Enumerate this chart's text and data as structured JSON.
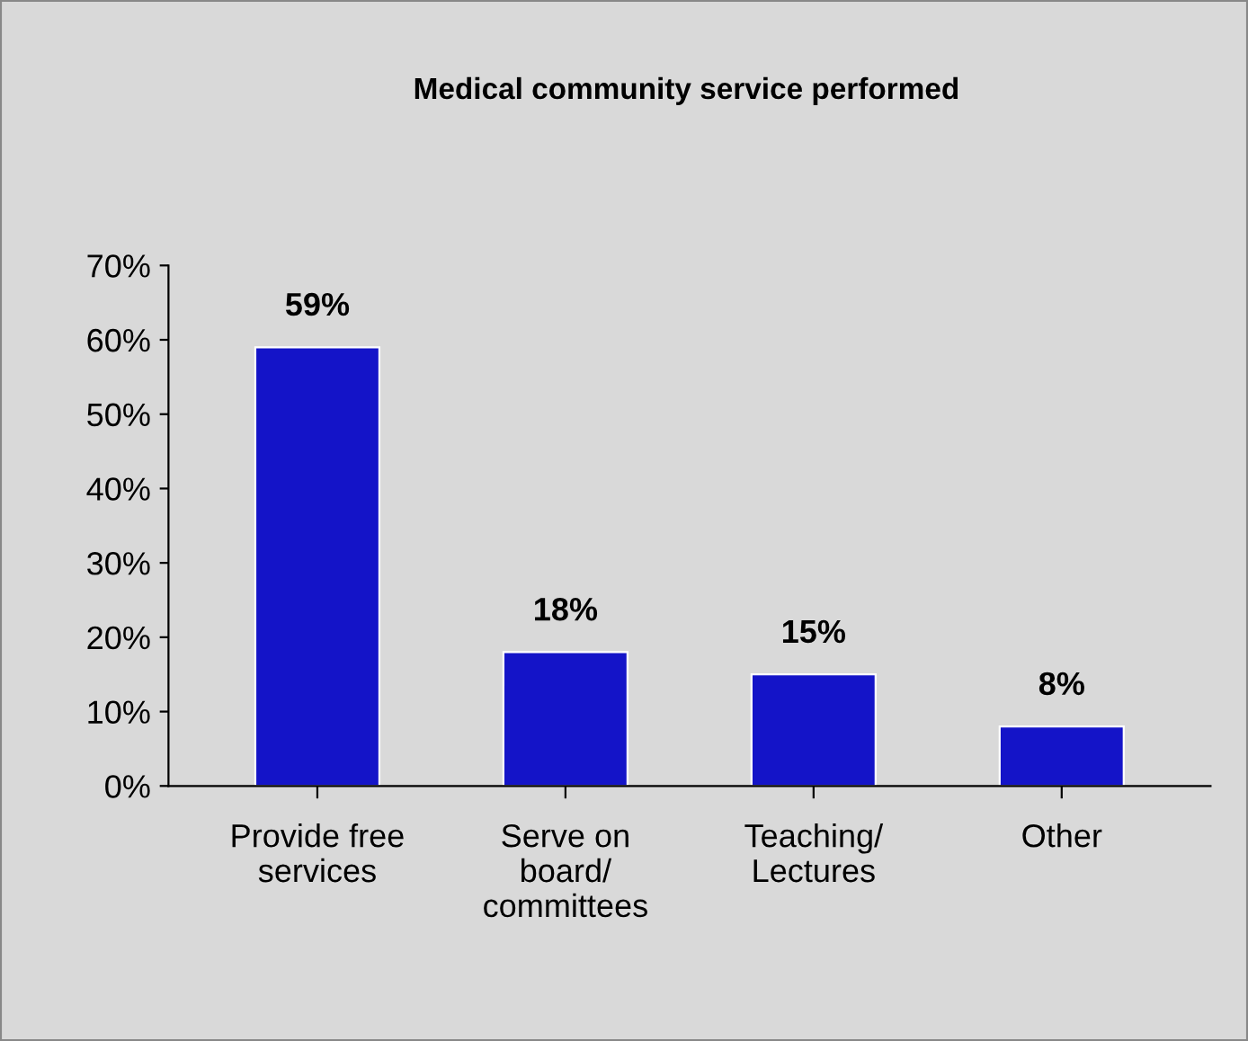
{
  "chart_data": {
    "type": "bar",
    "title": "Medical community service performed",
    "categories": [
      "Provide free\nservices",
      "Serve on\nboard/\ncommittees",
      "Teaching/\nLectures",
      "Other"
    ],
    "values": [
      59,
      18,
      15,
      8
    ],
    "color": "#1414c8",
    "value_labels": [
      "59%",
      "18%",
      "15%",
      "8%"
    ],
    "ylim": [
      0,
      70
    ],
    "yticks": [
      {
        "value": 0,
        "label": "0%"
      },
      {
        "value": 10,
        "label": "10%"
      },
      {
        "value": 20,
        "label": "20%"
      },
      {
        "value": 30,
        "label": "30%"
      },
      {
        "value": 40,
        "label": "40%"
      },
      {
        "value": 50,
        "label": "50%"
      },
      {
        "value": 60,
        "label": "60%"
      },
      {
        "value": 70,
        "label": "70%"
      }
    ],
    "grid": false
  }
}
